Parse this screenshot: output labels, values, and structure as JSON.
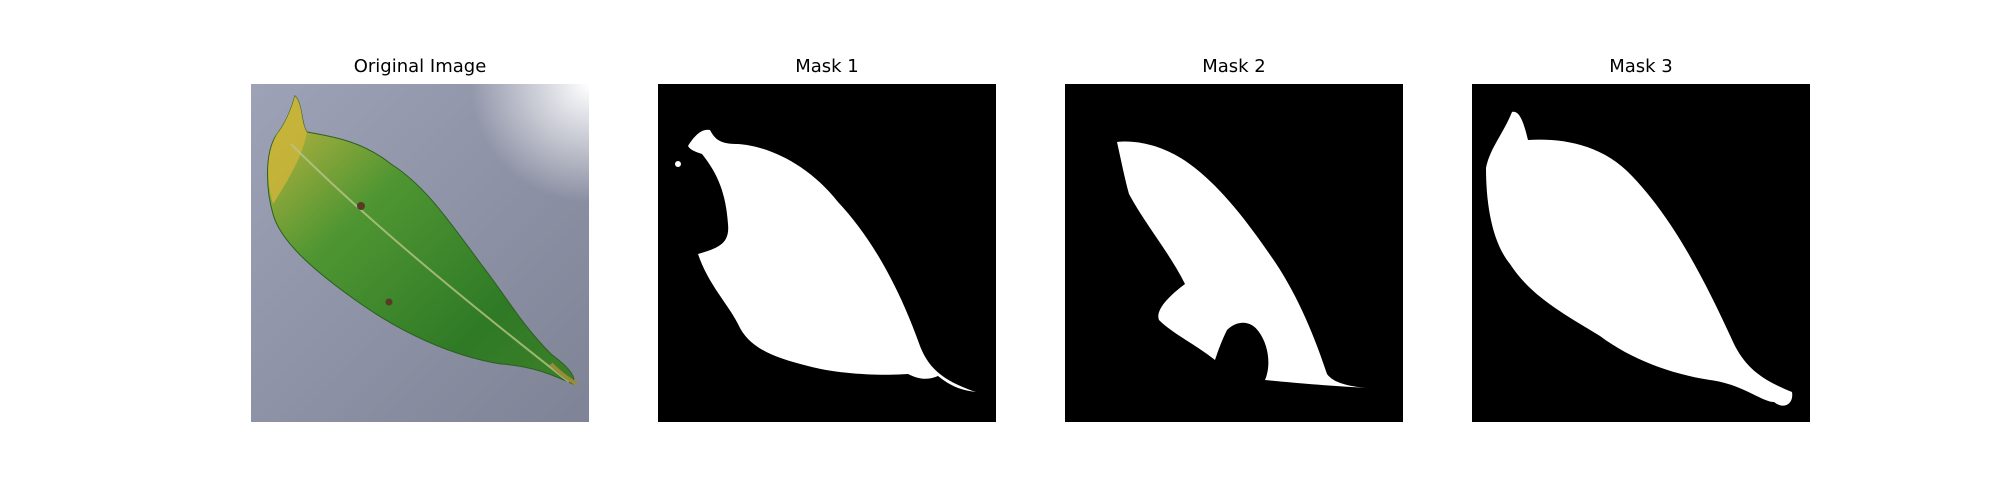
{
  "figure": {
    "panels": [
      {
        "title": "Original Image",
        "content": "photo of a green leaf with yellowed tip on a grey surface"
      },
      {
        "title": "Mask 1",
        "content": "binary segmentation mask"
      },
      {
        "title": "Mask 2",
        "content": "binary segmentation mask"
      },
      {
        "title": "Mask 3",
        "content": "binary segmentation mask"
      }
    ]
  },
  "colors": {
    "background": "#ffffff",
    "mask_background": "#000000",
    "mask_foreground": "#ffffff",
    "leaf_green": "#3f8a2c",
    "leaf_yellow": "#c6b13a",
    "surface_grey": "#8f93a6"
  }
}
